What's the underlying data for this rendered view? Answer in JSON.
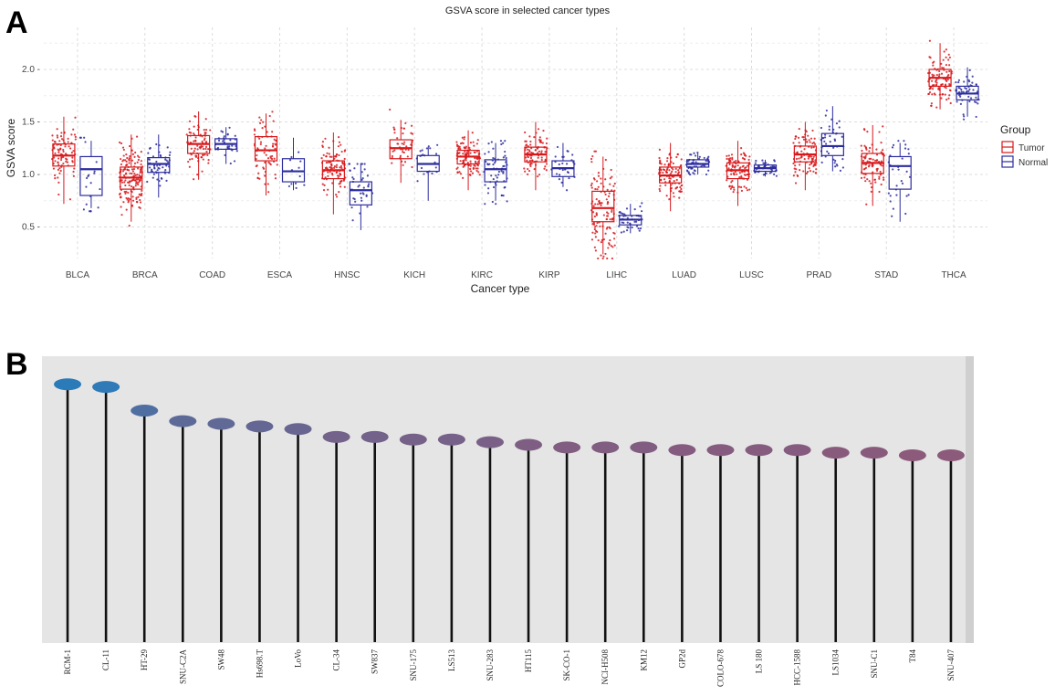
{
  "panel_a_label": "A",
  "panel_b_label": "B",
  "chart_data": [
    {
      "type": "box",
      "title": "GSVA score in selected cancer types",
      "xlabel": "Cancer type",
      "ylabel": "GSVA score",
      "ylim": [
        0.2,
        2.4
      ],
      "yticks": [
        0.5,
        1.0,
        1.5,
        2.0
      ],
      "ytick_labels": [
        "0.5 -",
        "1.0 -",
        "1.5 -",
        "2.0 -"
      ],
      "grid": true,
      "legend": {
        "title": "Group",
        "position": "right",
        "entries": [
          "Tumor",
          "Normal"
        ]
      },
      "colors": {
        "Tumor": "#d7191c",
        "Normal": "#2c2c9e",
        "grid": "#dcdcdc"
      },
      "categories": [
        "BLCA",
        "BRCA",
        "COAD",
        "ESCA",
        "HNSC",
        "KICH",
        "KIRC",
        "KIRP",
        "LIHC",
        "LUAD",
        "LUSC",
        "PRAD",
        "STAD",
        "THCA"
      ],
      "series": [
        {
          "name": "Tumor",
          "boxes": [
            {
              "q1": 1.08,
              "median": 1.18,
              "q3": 1.29,
              "whislo": 0.72,
              "whishi": 1.55,
              "range": [
                0.6,
                1.6
              ],
              "n": 90
            },
            {
              "q1": 0.86,
              "median": 0.97,
              "q3": 1.07,
              "whislo": 0.55,
              "whishi": 1.38,
              "range": [
                0.5,
                1.5
              ],
              "n": 160
            },
            {
              "q1": 1.2,
              "median": 1.29,
              "q3": 1.37,
              "whislo": 0.95,
              "whishi": 1.6,
              "range": [
                0.8,
                1.72
              ],
              "n": 85
            },
            {
              "q1": 1.13,
              "median": 1.23,
              "q3": 1.36,
              "whislo": 0.8,
              "whishi": 1.58,
              "range": [
                0.65,
                1.62
              ],
              "n": 70
            },
            {
              "q1": 0.96,
              "median": 1.04,
              "q3": 1.13,
              "whislo": 0.62,
              "whishi": 1.4,
              "range": [
                0.55,
                1.45
              ],
              "n": 110
            },
            {
              "q1": 1.15,
              "median": 1.25,
              "q3": 1.33,
              "whislo": 0.92,
              "whishi": 1.52,
              "range": [
                0.85,
                1.72
              ],
              "n": 45
            },
            {
              "q1": 1.1,
              "median": 1.17,
              "q3": 1.23,
              "whislo": 0.85,
              "whishi": 1.42,
              "range": [
                0.5,
                1.48
              ],
              "n": 110
            },
            {
              "q1": 1.12,
              "median": 1.19,
              "q3": 1.26,
              "whislo": 0.85,
              "whishi": 1.5,
              "range": [
                0.78,
                1.72
              ],
              "n": 85
            },
            {
              "q1": 0.55,
              "median": 0.68,
              "q3": 0.84,
              "whislo": 0.24,
              "whishi": 1.17,
              "range": [
                0.2,
                1.22
              ],
              "n": 120
            },
            {
              "q1": 0.92,
              "median": 0.99,
              "q3": 1.07,
              "whislo": 0.65,
              "whishi": 1.3,
              "range": [
                0.5,
                1.45
              ],
              "n": 100
            },
            {
              "q1": 0.96,
              "median": 1.04,
              "q3": 1.11,
              "whislo": 0.7,
              "whishi": 1.32,
              "range": [
                0.4,
                1.38
              ],
              "n": 100
            },
            {
              "q1": 1.12,
              "median": 1.19,
              "q3": 1.27,
              "whislo": 0.85,
              "whishi": 1.5,
              "range": [
                0.75,
                1.62
              ],
              "n": 95
            },
            {
              "q1": 1.01,
              "median": 1.11,
              "q3": 1.2,
              "whislo": 0.7,
              "whishi": 1.47,
              "range": [
                0.52,
                1.52
              ],
              "n": 85
            },
            {
              "q1": 1.84,
              "median": 1.92,
              "q3": 2.0,
              "whislo": 1.62,
              "whishi": 2.25,
              "range": [
                1.5,
                2.32
              ],
              "n": 100
            }
          ]
        },
        {
          "name": "Normal",
          "boxes": [
            {
              "q1": 0.8,
              "median": 1.05,
              "q3": 1.17,
              "whislo": 0.68,
              "whishi": 1.32,
              "range": [
                0.65,
                1.35
              ],
              "n": 20
            },
            {
              "q1": 1.02,
              "median": 1.1,
              "q3": 1.16,
              "whislo": 0.78,
              "whishi": 1.38,
              "range": [
                0.7,
                1.4
              ],
              "n": 55
            },
            {
              "q1": 1.24,
              "median": 1.29,
              "q3": 1.34,
              "whislo": 1.1,
              "whishi": 1.45,
              "range": [
                0.95,
                1.46
              ],
              "n": 35
            },
            {
              "q1": 0.93,
              "median": 1.03,
              "q3": 1.15,
              "whislo": 0.85,
              "whishi": 1.35,
              "range": [
                0.85,
                1.36
              ],
              "n": 12
            },
            {
              "q1": 0.71,
              "median": 0.85,
              "q3": 0.93,
              "whislo": 0.47,
              "whishi": 1.1,
              "range": [
                0.45,
                1.1
              ],
              "n": 40
            },
            {
              "q1": 1.03,
              "median": 1.1,
              "q3": 1.18,
              "whislo": 0.75,
              "whishi": 1.26,
              "range": [
                0.72,
                1.28
              ],
              "n": 22
            },
            {
              "q1": 0.93,
              "median": 1.05,
              "q3": 1.14,
              "whislo": 0.75,
              "whishi": 1.3,
              "range": [
                0.72,
                1.32
              ],
              "n": 60
            },
            {
              "q1": 0.98,
              "median": 1.06,
              "q3": 1.13,
              "whislo": 0.88,
              "whishi": 1.3,
              "range": [
                0.85,
                1.32
              ],
              "n": 30
            },
            {
              "q1": 0.52,
              "median": 0.57,
              "q3": 0.61,
              "whislo": 0.44,
              "whishi": 0.72,
              "range": [
                0.42,
                0.75
              ],
              "n": 45
            },
            {
              "q1": 1.07,
              "median": 1.1,
              "q3": 1.14,
              "whislo": 1.0,
              "whishi": 1.2,
              "range": [
                0.95,
                1.34
              ],
              "n": 50
            },
            {
              "q1": 1.03,
              "median": 1.06,
              "q3": 1.09,
              "whislo": 0.98,
              "whishi": 1.14,
              "range": [
                0.95,
                1.16
              ],
              "n": 45
            },
            {
              "q1": 1.18,
              "median": 1.27,
              "q3": 1.39,
              "whislo": 1.03,
              "whishi": 1.65,
              "range": [
                1.02,
                1.68
              ],
              "n": 45
            },
            {
              "q1": 0.86,
              "median": 1.08,
              "q3": 1.17,
              "whislo": 0.55,
              "whishi": 1.3,
              "range": [
                0.55,
                1.32
              ],
              "n": 30
            },
            {
              "q1": 1.71,
              "median": 1.77,
              "q3": 1.84,
              "whislo": 1.55,
              "whishi": 2.02,
              "range": [
                1.52,
                2.05
              ],
              "n": 55
            }
          ]
        }
      ]
    },
    {
      "type": "lollipop",
      "categories": [
        "RCM-1",
        "CL-11",
        "HT-29",
        "SNU-C2A",
        "SW48",
        "Hs698.T",
        "LoVo",
        "CL-34",
        "SW837",
        "SNU-175",
        "LS513",
        "SNU-283",
        "HT115",
        "SK-CO-1",
        "NCI-H508",
        "KM12",
        "GP2d",
        "COLO-678",
        "LS 180",
        "HCC-1588",
        "LS1034",
        "SNU-C1",
        "T84",
        "SNU-407"
      ],
      "values": [
        0.98,
        0.97,
        0.88,
        0.84,
        0.83,
        0.82,
        0.81,
        0.78,
        0.78,
        0.77,
        0.77,
        0.76,
        0.75,
        0.74,
        0.74,
        0.74,
        0.73,
        0.73,
        0.73,
        0.73,
        0.72,
        0.72,
        0.71,
        0.71
      ],
      "ylim": [
        0,
        1.0
      ],
      "grid": false,
      "colors": {
        "high": "#2b7bb9",
        "low": "#8c5a7a",
        "stem": "#111111",
        "panel": "#e5e5e5"
      }
    }
  ]
}
